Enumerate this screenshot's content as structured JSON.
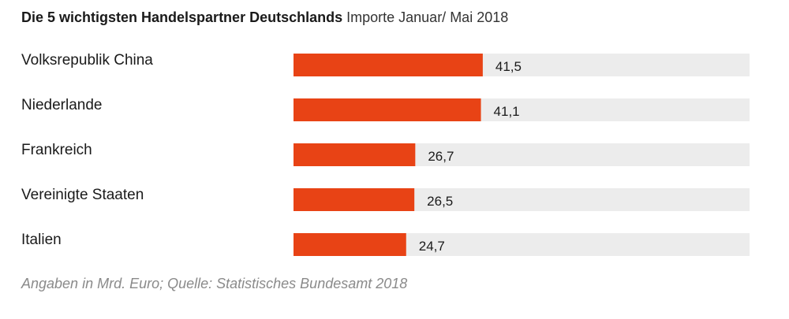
{
  "chart_data": {
    "type": "bar",
    "orientation": "horizontal",
    "title": "Die 5 wichtigsten Handelspartner Deutschlands",
    "subtitle": "Importe Januar/ Mai 2018",
    "categories": [
      "Volksrepublik China",
      "Niederlande",
      "Frankreich",
      "Vereinigte Staaten",
      "Italien"
    ],
    "values": [
      41.5,
      41.1,
      26.7,
      26.5,
      24.7
    ],
    "value_labels": [
      "41,5",
      "41,1",
      "26,7",
      "26,5",
      "24,7"
    ],
    "xlim": [
      0,
      100
    ],
    "grid": false,
    "legend": "none",
    "source": "Angaben in Mrd. Euro; Quelle: Statistisches Bundesamt 2018",
    "colors": {
      "bar": "#e84315",
      "track": "#ececec"
    }
  }
}
